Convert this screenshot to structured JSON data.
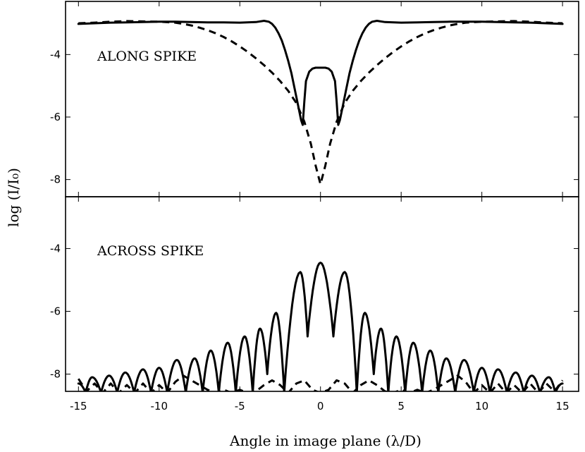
{
  "chart_data": [
    {
      "type": "line",
      "panel": "top",
      "annotation": "ALONG SPIKE",
      "xlabel": "Angle in image plane (λ/D)",
      "ylabel": "log (I/I₀)",
      "xlim": [
        -15.8,
        16.0
      ],
      "ylim": [
        -8.55,
        -2.3
      ],
      "xticks": [
        -15,
        -10,
        -5,
        0,
        5,
        10,
        15
      ],
      "yticks": [
        -8,
        -6,
        -4
      ],
      "grid": false,
      "series": [
        {
          "style": "solid",
          "x": [
            -15,
            -14,
            -13,
            -12,
            -11,
            -10,
            -9,
            -8,
            -7,
            -6,
            -5,
            -4,
            -3.5,
            -3.2,
            -3,
            -2.8,
            -2.6,
            -2.4,
            -2.2,
            -2,
            -1.8,
            -1.6,
            -1.4,
            -1.2,
            -1.1,
            -1.0,
            -0.9,
            -0.7,
            -0.5,
            -0.3,
            0,
            0.3,
            0.5,
            0.7,
            0.9,
            1.0,
            1.1,
            1.2,
            1.4,
            1.6,
            1.8,
            2,
            2.2,
            2.4,
            2.6,
            2.8,
            3,
            3.2,
            3.5,
            4,
            5,
            6,
            7,
            8,
            9,
            10,
            11,
            12,
            13,
            14,
            15
          ],
          "y": [
            -3.02,
            -3.0,
            -2.98,
            -2.97,
            -2.96,
            -2.95,
            -2.95,
            -2.96,
            -2.97,
            -2.97,
            -2.98,
            -2.96,
            -2.92,
            -2.95,
            -3.02,
            -3.14,
            -3.32,
            -3.55,
            -3.85,
            -4.2,
            -4.6,
            -5.1,
            -5.6,
            -6.1,
            -6.25,
            -5.5,
            -4.85,
            -4.55,
            -4.45,
            -4.42,
            -4.42,
            -4.42,
            -4.45,
            -4.55,
            -4.85,
            -5.5,
            -6.25,
            -6.1,
            -5.6,
            -5.1,
            -4.6,
            -4.2,
            -3.85,
            -3.55,
            -3.32,
            -3.14,
            -3.02,
            -2.95,
            -2.92,
            -2.96,
            -2.98,
            -2.97,
            -2.96,
            -2.95,
            -2.95,
            -2.95,
            -2.96,
            -2.97,
            -2.98,
            -3.0,
            -3.02
          ]
        },
        {
          "style": "dashed",
          "x": [
            -15,
            -14,
            -13,
            -12,
            -11,
            -10,
            -9,
            -8.5,
            -8,
            -7.5,
            -7,
            -6.5,
            -6,
            -5.5,
            -5,
            -4.5,
            -4,
            -3.5,
            -3,
            -2.5,
            -2,
            -1.5,
            -1,
            -0.6,
            -0.3,
            0,
            0.3,
            0.6,
            1,
            1.5,
            2,
            2.5,
            3,
            3.5,
            4,
            4.5,
            5,
            5.5,
            6,
            6.5,
            7,
            7.5,
            8,
            8.5,
            9,
            10,
            11,
            12,
            13,
            14,
            15
          ],
          "y": [
            -3.0,
            -2.98,
            -2.95,
            -2.93,
            -2.94,
            -2.95,
            -2.98,
            -3.02,
            -3.07,
            -3.14,
            -3.22,
            -3.32,
            -3.44,
            -3.58,
            -3.74,
            -3.92,
            -4.12,
            -4.34,
            -4.58,
            -4.85,
            -5.16,
            -5.55,
            -6.15,
            -6.85,
            -7.55,
            -8.15,
            -7.55,
            -6.85,
            -6.15,
            -5.55,
            -5.16,
            -4.85,
            -4.58,
            -4.34,
            -4.12,
            -3.92,
            -3.74,
            -3.58,
            -3.44,
            -3.32,
            -3.22,
            -3.14,
            -3.07,
            -3.02,
            -2.98,
            -2.95,
            -2.94,
            -2.93,
            -2.95,
            -2.98,
            -3.0
          ]
        }
      ]
    },
    {
      "type": "line",
      "panel": "bottom",
      "annotation": "ACROSS SPIKE",
      "xlabel": "Angle in image plane (λ/D)",
      "ylabel": "log (I/I₀)",
      "xlim": [
        -15.8,
        16.0
      ],
      "ylim": [
        -8.55,
        -2.35
      ],
      "xticks": [
        -15,
        -10,
        -5,
        0,
        5,
        10,
        15
      ],
      "yticks": [
        -8,
        -6,
        -4
      ],
      "grid": false,
      "series": [
        {
          "style": "solid",
          "description_of_shape": "sinc-squared diffraction pattern: central lobe peak -4.45 at 0, nulls at about ±0.8 (to -6.8), side lobes decaying outward, nulls dropping below the bottom axis",
          "peaks": [
            {
              "x": -15.0,
              "y": -8.3
            },
            {
              "x": -14.15,
              "y": -8.1
            },
            {
              "x": -13.1,
              "y": -8.05
            },
            {
              "x": -12.1,
              "y": -7.95
            },
            {
              "x": -11.0,
              "y": -7.85
            },
            {
              "x": -10.0,
              "y": -7.8
            },
            {
              "x": -8.9,
              "y": -7.55
            },
            {
              "x": -7.8,
              "y": -7.5
            },
            {
              "x": -6.8,
              "y": -7.25
            },
            {
              "x": -5.75,
              "y": -7.0
            },
            {
              "x": -4.7,
              "y": -6.8
            },
            {
              "x": -3.75,
              "y": -6.55
            },
            {
              "x": -2.75,
              "y": -6.05
            },
            {
              "x": -1.25,
              "y": -4.75
            },
            {
              "x": 0.0,
              "y": -4.45
            },
            {
              "x": 1.5,
              "y": -4.75
            },
            {
              "x": 2.75,
              "y": -6.05
            },
            {
              "x": 3.75,
              "y": -6.55
            },
            {
              "x": 4.7,
              "y": -6.8
            },
            {
              "x": 5.75,
              "y": -7.0
            },
            {
              "x": 6.8,
              "y": -7.25
            },
            {
              "x": 7.8,
              "y": -7.5
            },
            {
              "x": 8.9,
              "y": -7.55
            },
            {
              "x": 10.0,
              "y": -7.8
            },
            {
              "x": 11.0,
              "y": -7.85
            },
            {
              "x": 12.1,
              "y": -7.95
            },
            {
              "x": 13.1,
              "y": -8.05
            },
            {
              "x": 14.15,
              "y": -8.1
            },
            {
              "x": 15.0,
              "y": -8.3
            }
          ],
          "nulls": [
            {
              "x": -14.55,
              "y": -8.6
            },
            {
              "x": -13.6,
              "y": -8.6
            },
            {
              "x": -12.6,
              "y": -8.6
            },
            {
              "x": -11.55,
              "y": -8.6
            },
            {
              "x": -10.5,
              "y": -8.6
            },
            {
              "x": -9.5,
              "y": -8.6
            },
            {
              "x": -8.35,
              "y": -8.6
            },
            {
              "x": -7.3,
              "y": -8.6
            },
            {
              "x": -6.3,
              "y": -8.6
            },
            {
              "x": -5.25,
              "y": -8.6
            },
            {
              "x": -4.2,
              "y": -8.6
            },
            {
              "x": -3.3,
              "y": -8.0
            },
            {
              "x": -2.25,
              "y": -8.6
            },
            {
              "x": -0.8,
              "y": -6.8
            },
            {
              "x": 0.8,
              "y": -6.8
            },
            {
              "x": 2.25,
              "y": -8.6
            },
            {
              "x": 3.3,
              "y": -8.0
            },
            {
              "x": 4.2,
              "y": -8.6
            },
            {
              "x": 5.25,
              "y": -8.6
            },
            {
              "x": 6.3,
              "y": -8.6
            },
            {
              "x": 7.3,
              "y": -8.6
            },
            {
              "x": 8.35,
              "y": -8.6
            },
            {
              "x": 9.5,
              "y": -8.6
            },
            {
              "x": 10.5,
              "y": -8.6
            },
            {
              "x": 11.55,
              "y": -8.6
            },
            {
              "x": 12.6,
              "y": -8.6
            },
            {
              "x": 13.6,
              "y": -8.6
            },
            {
              "x": 14.55,
              "y": -8.6
            }
          ]
        },
        {
          "style": "dashed",
          "x": [
            -15,
            -14.5,
            -14,
            -13.5,
            -13,
            -12.5,
            -12,
            -11.5,
            -11,
            -10.5,
            -10,
            -9.5,
            -9,
            -8.5,
            -8,
            -7.5,
            -7,
            -6.5,
            -6,
            -5.5,
            -5,
            -4.5,
            -4,
            -3.5,
            -3,
            -2.5,
            -2,
            -1.5,
            -1,
            -0.5,
            0,
            0.5,
            1,
            1.5,
            2,
            2.5,
            3,
            3.5,
            4,
            4.5,
            5,
            5.5,
            6,
            6.5,
            7,
            7.5,
            8,
            8.5,
            9,
            9.5,
            10,
            10.5,
            11,
            11.5,
            12,
            12.5,
            13,
            13.5,
            14,
            14.5,
            15
          ],
          "y": [
            -8.15,
            -8.55,
            -8.3,
            -8.6,
            -8.3,
            -8.6,
            -8.35,
            -8.6,
            -8.3,
            -8.6,
            -8.35,
            -8.6,
            -8.25,
            -8.05,
            -8.2,
            -8.35,
            -8.5,
            -8.6,
            -8.5,
            -8.6,
            -8.5,
            -8.6,
            -8.55,
            -8.35,
            -8.2,
            -8.35,
            -8.6,
            -8.3,
            -8.2,
            -8.5,
            -8.6,
            -8.5,
            -8.2,
            -8.3,
            -8.6,
            -8.35,
            -8.2,
            -8.35,
            -8.55,
            -8.6,
            -8.5,
            -8.6,
            -8.5,
            -8.6,
            -8.5,
            -8.35,
            -8.2,
            -8.05,
            -8.25,
            -8.6,
            -8.35,
            -8.6,
            -8.3,
            -8.6,
            -8.35,
            -8.6,
            -8.3,
            -8.6,
            -8.3,
            -8.55,
            -8.2
          ]
        }
      ]
    }
  ]
}
